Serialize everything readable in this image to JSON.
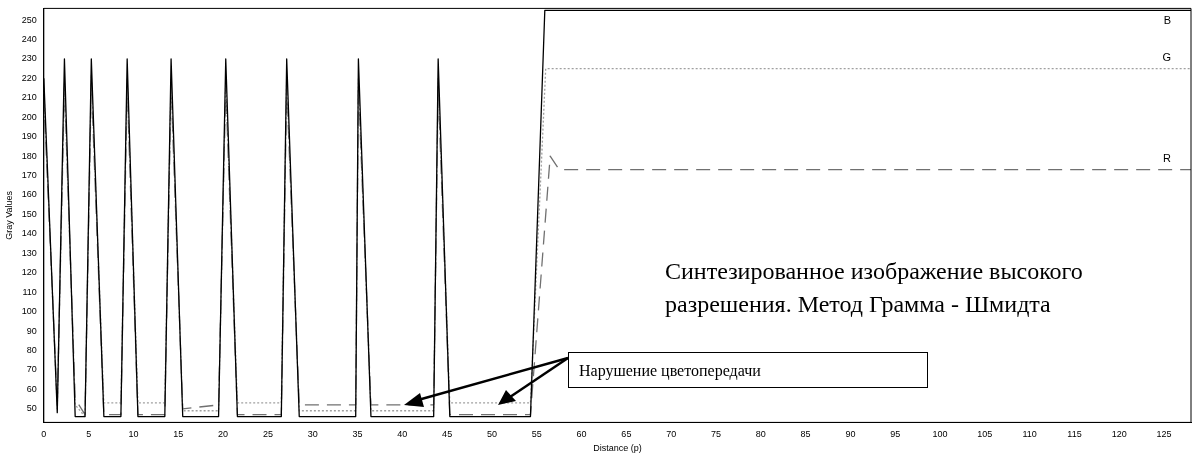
{
  "chart_data": {
    "type": "line",
    "xlabel": "Distance (p)",
    "ylabel": "Gray Values",
    "xlim": [
      0,
      128
    ],
    "ylim": [
      43,
      256
    ],
    "xticks": [
      0,
      5,
      10,
      15,
      20,
      25,
      30,
      35,
      40,
      45,
      50,
      55,
      60,
      65,
      70,
      75,
      80,
      85,
      90,
      95,
      100,
      105,
      110,
      115,
      120,
      125
    ],
    "yticks": [
      50,
      60,
      70,
      80,
      90,
      100,
      110,
      120,
      130,
      140,
      150,
      160,
      170,
      180,
      190,
      200,
      210,
      220,
      230,
      240,
      250
    ],
    "grid": false,
    "legend": false,
    "marker": "none",
    "annotations": [
      "Синтезированное изображение высокого разрешения. Метод Грамма - Шмидта",
      "Нарушение цветопередачи"
    ],
    "series": [
      {
        "name": "B",
        "color": "#000000",
        "line_style": "solid",
        "x": [
          0,
          1.5,
          2.3,
          3.5,
          4.6,
          5.3,
          6.7,
          8.6,
          9.3,
          10.5,
          13.5,
          14.2,
          15.5,
          19.5,
          20.3,
          21.6,
          26.5,
          27.1,
          28.5,
          34.8,
          35.1,
          36.5,
          43.5,
          44.0,
          45.3,
          54.3,
          55.9,
          128
        ],
        "values": [
          220,
          48,
          230,
          46,
          46,
          230,
          46,
          46,
          230,
          46,
          46,
          230,
          46,
          46,
          230,
          46,
          46,
          230,
          46,
          46,
          230,
          46,
          46,
          230,
          46,
          46,
          255,
          255
        ]
      },
      {
        "name": "G",
        "color": "#a0a0a0",
        "line_style": "dotted",
        "x": [
          0,
          1.5,
          2.3,
          3.5,
          4.6,
          5.3,
          6.7,
          8.6,
          9.3,
          10.5,
          13.5,
          14.2,
          15.5,
          19.5,
          20.3,
          21.6,
          26.5,
          27.1,
          28.5,
          34.8,
          35.1,
          36.5,
          43.5,
          44.0,
          45.3,
          54.3,
          56.0,
          128
        ],
        "values": [
          215,
          50,
          218,
          52,
          46,
          222,
          53,
          53,
          220,
          53,
          53,
          220,
          49,
          49,
          220,
          53,
          53,
          220,
          49,
          49,
          220,
          49,
          49,
          220,
          53,
          53,
          225,
          225
        ]
      },
      {
        "name": "R",
        "color": "#707070",
        "line_style": "dashed",
        "x": [
          0,
          1.5,
          2.3,
          3.5,
          4.6,
          5.3,
          6.7,
          8.6,
          9.3,
          10.5,
          13.5,
          14.2,
          15.5,
          19.5,
          20.3,
          21.6,
          26.5,
          27.1,
          28.5,
          34.8,
          35.1,
          36.5,
          43.5,
          44.0,
          45.3,
          54.3,
          56.5,
          57.5,
          128
        ],
        "values": [
          210,
          52,
          216,
          55,
          47,
          218,
          47,
          47,
          216,
          47,
          47,
          216,
          50,
          52,
          216,
          47,
          47,
          216,
          52,
          52,
          216,
          52,
          52,
          216,
          47,
          47,
          180,
          173,
          173
        ]
      }
    ]
  }
}
